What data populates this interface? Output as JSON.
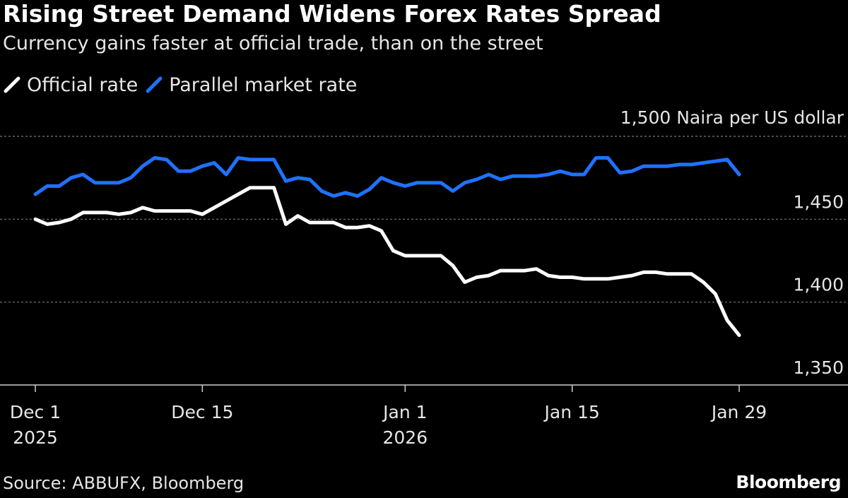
{
  "title": "Rising Street Demand Widens Forex Rates Spread",
  "subtitle": "Currency gains faster at official trade, than on the street",
  "legend": [
    {
      "label": "Official rate",
      "color": "#ffffff"
    },
    {
      "label": "Parallel market rate",
      "color": "#1f72ff"
    }
  ],
  "source": "Source: ABBUFX, Bloomberg",
  "brand": "Bloomberg",
  "chart_data": {
    "type": "line",
    "title": "Rising Street Demand Widens Forex Rates Spread",
    "subtitle": "Currency gains faster at official trade, than on the street",
    "ylabel": "1,500 Naira per US dollar",
    "ylim": [
      1350,
      1500
    ],
    "yticks": [
      1350,
      1400,
      1450,
      1500
    ],
    "ytick_labels": [
      "1,350",
      "1,400",
      "1,450",
      "1,500 Naira per US dollar"
    ],
    "xlim": [
      0,
      59
    ],
    "xticks": [
      {
        "x": 0,
        "label": "Dec 1",
        "sublabel": "2025"
      },
      {
        "x": 14,
        "label": "Dec 15",
        "sublabel": ""
      },
      {
        "x": 31,
        "label": "Jan 1",
        "sublabel": "2026"
      },
      {
        "x": 45,
        "label": "Jan 15",
        "sublabel": ""
      },
      {
        "x": 59,
        "label": "Jan 29",
        "sublabel": ""
      }
    ],
    "series": [
      {
        "name": "Official rate",
        "color": "#ffffff",
        "points": [
          [
            0,
            1450
          ],
          [
            1,
            1447
          ],
          [
            2,
            1448
          ],
          [
            3,
            1450
          ],
          [
            4,
            1454
          ],
          [
            5,
            1454
          ],
          [
            6,
            1454
          ],
          [
            7,
            1453
          ],
          [
            8,
            1454
          ],
          [
            9,
            1457
          ],
          [
            10,
            1455
          ],
          [
            11,
            1455
          ],
          [
            12,
            1455
          ],
          [
            13,
            1455
          ],
          [
            14,
            1453
          ],
          [
            15,
            1457
          ],
          [
            16,
            1461
          ],
          [
            17,
            1465
          ],
          [
            18,
            1469
          ],
          [
            19,
            1469
          ],
          [
            20,
            1469
          ],
          [
            21,
            1447
          ],
          [
            22,
            1452
          ],
          [
            23,
            1448
          ],
          [
            24,
            1448
          ],
          [
            25,
            1448
          ],
          [
            26,
            1445
          ],
          [
            27,
            1445
          ],
          [
            28,
            1446
          ],
          [
            29,
            1443
          ],
          [
            30,
            1431
          ],
          [
            31,
            1428
          ],
          [
            32,
            1428
          ],
          [
            33,
            1428
          ],
          [
            34,
            1428
          ],
          [
            35,
            1422
          ],
          [
            36,
            1412
          ],
          [
            37,
            1415
          ],
          [
            38,
            1416
          ],
          [
            39,
            1419
          ],
          [
            40,
            1419
          ],
          [
            41,
            1419
          ],
          [
            42,
            1420
          ],
          [
            43,
            1416
          ],
          [
            44,
            1415
          ],
          [
            45,
            1415
          ],
          [
            46,
            1414
          ],
          [
            47,
            1414
          ],
          [
            48,
            1414
          ],
          [
            49,
            1415
          ],
          [
            50,
            1416
          ],
          [
            51,
            1418
          ],
          [
            52,
            1418
          ],
          [
            53,
            1417
          ],
          [
            54,
            1417
          ],
          [
            55,
            1417
          ],
          [
            56,
            1412
          ],
          [
            57,
            1405
          ],
          [
            58,
            1389
          ],
          [
            59,
            1380
          ]
        ]
      },
      {
        "name": "Parallel market rate",
        "color": "#1f72ff",
        "points": [
          [
            0,
            1465
          ],
          [
            1,
            1470
          ],
          [
            2,
            1470
          ],
          [
            3,
            1475
          ],
          [
            4,
            1477
          ],
          [
            5,
            1472
          ],
          [
            6,
            1472
          ],
          [
            7,
            1472
          ],
          [
            8,
            1475
          ],
          [
            9,
            1482
          ],
          [
            10,
            1487
          ],
          [
            11,
            1486
          ],
          [
            12,
            1479
          ],
          [
            13,
            1479
          ],
          [
            14,
            1482
          ],
          [
            15,
            1484
          ],
          [
            16,
            1477
          ],
          [
            17,
            1487
          ],
          [
            18,
            1486
          ],
          [
            19,
            1486
          ],
          [
            20,
            1486
          ],
          [
            21,
            1473
          ],
          [
            22,
            1475
          ],
          [
            23,
            1474
          ],
          [
            24,
            1467
          ],
          [
            25,
            1464
          ],
          [
            26,
            1466
          ],
          [
            27,
            1464
          ],
          [
            28,
            1468
          ],
          [
            29,
            1475
          ],
          [
            30,
            1472
          ],
          [
            31,
            1470
          ],
          [
            32,
            1472
          ],
          [
            33,
            1472
          ],
          [
            34,
            1472
          ],
          [
            35,
            1467
          ],
          [
            36,
            1472
          ],
          [
            37,
            1474
          ],
          [
            38,
            1477
          ],
          [
            39,
            1474
          ],
          [
            40,
            1476
          ],
          [
            41,
            1476
          ],
          [
            42,
            1476
          ],
          [
            43,
            1477
          ],
          [
            44,
            1479
          ],
          [
            45,
            1477
          ],
          [
            46,
            1477
          ],
          [
            47,
            1487
          ],
          [
            48,
            1487
          ],
          [
            49,
            1478
          ],
          [
            50,
            1479
          ],
          [
            51,
            1482
          ],
          [
            52,
            1482
          ],
          [
            53,
            1482
          ],
          [
            54,
            1483
          ],
          [
            55,
            1483
          ],
          [
            56,
            1484
          ],
          [
            57,
            1485
          ],
          [
            58,
            1486
          ],
          [
            59,
            1477
          ]
        ]
      }
    ]
  }
}
